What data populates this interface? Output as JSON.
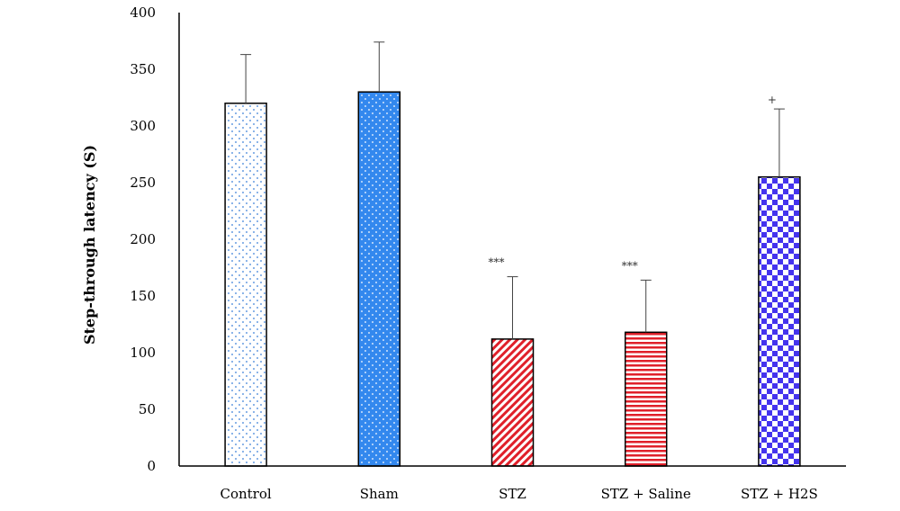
{
  "chart_data": {
    "type": "bar",
    "ylabel": "Step-through latency (S)",
    "xlabel": "",
    "ylim": [
      0,
      400
    ],
    "yticks": [
      0,
      50,
      100,
      150,
      200,
      250,
      300,
      350,
      400
    ],
    "grid": false,
    "categories": [
      "Control",
      "Sham",
      "STZ",
      "STZ + Saline",
      "STZ + H2S"
    ],
    "values": [
      320,
      330,
      112,
      118,
      255
    ],
    "errors": [
      43,
      44,
      55,
      46,
      60
    ],
    "annotations": [
      "",
      "",
      "***",
      "***",
      "+"
    ],
    "patterns": [
      "dots-light-blue",
      "dots-on-blue",
      "diagonal-red-stripes",
      "horizontal-red-stripes",
      "blue-checkerboard"
    ],
    "colors": {
      "light_blue": "#3a7fd8",
      "blue": "#3388ee",
      "red": "#e0202a",
      "checker_blue": "#4433ee"
    }
  }
}
